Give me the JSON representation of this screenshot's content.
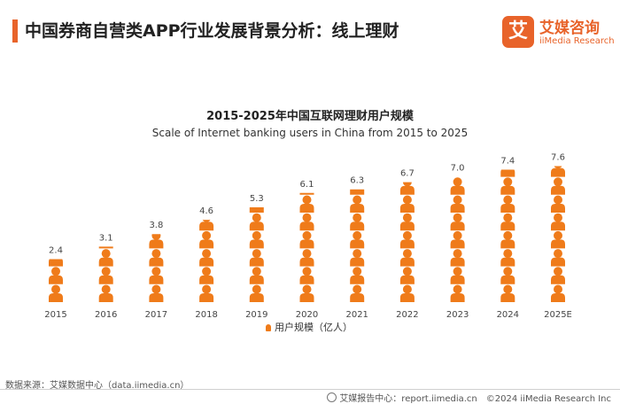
{
  "header": {
    "title": "中国券商自营类APP行业发展背景分析：线上理财",
    "logo_mark": "艾",
    "logo_cn": "艾媒咨询",
    "logo_en": "iiMedia Research"
  },
  "chart_data": {
    "type": "bar",
    "title": "2015-2025年中国互联网理财用户规模",
    "subtitle": "Scale of Internet banking users in China from 2015 to 2025",
    "categories": [
      "2015",
      "2016",
      "2017",
      "2018",
      "2019",
      "2020",
      "2021",
      "2022",
      "2023",
      "2024",
      "2025E"
    ],
    "series": [
      {
        "name": "用户规模（亿人）",
        "values": [
          2.4,
          3.1,
          3.8,
          4.6,
          5.3,
          6.1,
          6.3,
          6.7,
          7.0,
          7.4,
          7.6
        ]
      }
    ],
    "value_labels": [
      "2.4",
      "3.1",
      "3.8",
      "4.6",
      "5.3",
      "6.1",
      "6.3",
      "6.7",
      "7.0",
      "7.4",
      "7.6"
    ],
    "ylim": [
      0,
      8
    ],
    "legend_position": "bottom",
    "color": "#ef7b1a"
  },
  "legend": {
    "label": "用户规模（亿人）"
  },
  "footer": {
    "source": "数据来源：艾媒数据中心（data.iimedia.cn）",
    "report": "艾媒报告中心：report.iimedia.cn",
    "copyright": "©2024  iiMedia Research  Inc"
  }
}
